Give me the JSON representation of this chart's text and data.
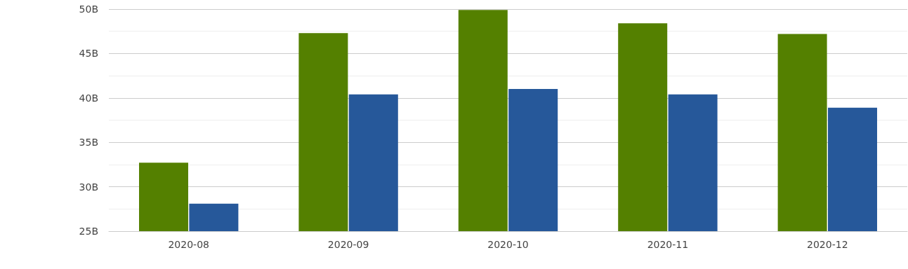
{
  "chart_data": {
    "type": "bar",
    "categories": [
      "2020-08",
      "2020-09",
      "2020-10",
      "2020-11",
      "2020-12"
    ],
    "series": [
      {
        "color": "#548000",
        "values": [
          32.7,
          47.3,
          49.9,
          48.4,
          47.2
        ]
      },
      {
        "color": "#26589a",
        "values": [
          28.1,
          40.4,
          41.0,
          40.4,
          38.9
        ]
      }
    ],
    "ylim": [
      25,
      50
    ],
    "yticks": [
      {
        "value": 25,
        "label": "25B"
      },
      {
        "value": 27.5,
        "label": null
      },
      {
        "value": 30,
        "label": "30B"
      },
      {
        "value": 32.5,
        "label": null
      },
      {
        "value": 35,
        "label": "35B"
      },
      {
        "value": 37.5,
        "label": null
      },
      {
        "value": 40,
        "label": "40B"
      },
      {
        "value": 42.5,
        "label": null
      },
      {
        "value": 45,
        "label": "45B"
      },
      {
        "value": 47.5,
        "label": null
      },
      {
        "value": 50,
        "label": "50B"
      }
    ],
    "grid": "y"
  }
}
